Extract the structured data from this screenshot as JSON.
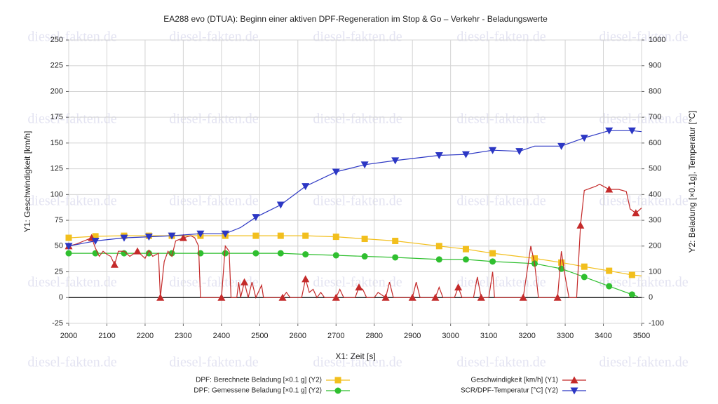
{
  "chart_data": {
    "type": "line",
    "title": "EA288 evo (DTUA): Beginn einer aktiven DPF-Regeneration im Stop & Go – Verkehr - Beladungswerte",
    "xlabel": "X1: Zeit [s]",
    "ylabel": "Y1: Geschwindigkeit [km/h]",
    "y2label": "Y2: Beladung [×0.1g], Temperatur [°C]",
    "watermark": "diesel-fakten.de",
    "xlim": [
      2000,
      3500
    ],
    "xticks": [
      2000,
      2100,
      2200,
      2300,
      2400,
      2500,
      2600,
      2700,
      2800,
      2900,
      3000,
      3100,
      3200,
      3300,
      3400,
      3500
    ],
    "ylim": [
      -25,
      250
    ],
    "yticks": [
      -25,
      0,
      25,
      50,
      75,
      100,
      125,
      150,
      175,
      200,
      225,
      250
    ],
    "y2lim": [
      -100,
      1000
    ],
    "y2ticks": [
      -100,
      0,
      100,
      200,
      300,
      400,
      500,
      600,
      700,
      800,
      900,
      1000
    ],
    "grid": true,
    "series": [
      {
        "name": "DPF: Berechnete Beladung [×0.1 g] (Y2)",
        "color": "#f2bf1d",
        "marker": "square",
        "axis": "y2",
        "x": [
          2000,
          2070,
          2145,
          2210,
          2270,
          2345,
          2410,
          2490,
          2555,
          2620,
          2700,
          2775,
          2855,
          2970,
          3040,
          3110,
          3220,
          3290,
          3350,
          3415,
          3475,
          3500
        ],
        "values": [
          232,
          238,
          240,
          240,
          240,
          240,
          240,
          240,
          240,
          240,
          236,
          228,
          220,
          200,
          188,
          172,
          152,
          136,
          120,
          104,
          88,
          84
        ]
      },
      {
        "name": "DPF: Gemessene Beladung [×0.1 g] (Y2)",
        "color": "#2fbf2f",
        "marker": "circle",
        "axis": "y2",
        "x": [
          2000,
          2070,
          2145,
          2210,
          2270,
          2345,
          2410,
          2490,
          2555,
          2620,
          2700,
          2775,
          2855,
          2970,
          3040,
          3110,
          3220,
          3290,
          3350,
          3415,
          3475,
          3490
        ],
        "values": [
          172,
          172,
          172,
          172,
          172,
          172,
          172,
          172,
          172,
          168,
          164,
          160,
          156,
          148,
          148,
          140,
          132,
          112,
          80,
          44,
          12,
          4
        ]
      },
      {
        "name": "Geschwindigkeit [km/h] (Y1)",
        "color": "#c42a2a",
        "marker": "triangle-up",
        "axis": "y",
        "x": [
          2000,
          2020,
          2040,
          2060,
          2070,
          2080,
          2090,
          2100,
          2110,
          2120,
          2130,
          2145,
          2160,
          2180,
          2200,
          2210,
          2220,
          2235,
          2240,
          2250,
          2260,
          2270,
          2280,
          2300,
          2320,
          2330,
          2340,
          2345,
          2400,
          2410,
          2420,
          2425,
          2440,
          2445,
          2450,
          2460,
          2470,
          2480,
          2490,
          2505,
          2510,
          2560,
          2570,
          2580,
          2610,
          2620,
          2630,
          2640,
          2650,
          2660,
          2670,
          2700,
          2710,
          2720,
          2750,
          2760,
          2770,
          2780,
          2800,
          2810,
          2830,
          2840,
          2850,
          2900,
          2910,
          2920,
          2960,
          2970,
          2980,
          3010,
          3020,
          3030,
          3060,
          3070,
          3080,
          3100,
          3110,
          3115,
          3190,
          3210,
          3220,
          3230,
          3280,
          3290,
          3300,
          3310,
          3330,
          3340,
          3350,
          3380,
          3390,
          3415,
          3440,
          3460,
          3470,
          3485,
          3500
        ],
        "values": [
          50,
          52,
          55,
          58,
          48,
          40,
          45,
          42,
          40,
          32,
          45,
          45,
          40,
          45,
          38,
          46,
          40,
          43,
          0,
          35,
          45,
          40,
          55,
          58,
          60,
          58,
          50,
          0,
          0,
          50,
          45,
          0,
          0,
          15,
          0,
          15,
          0,
          15,
          0,
          12,
          0,
          0,
          5,
          0,
          0,
          18,
          5,
          8,
          0,
          5,
          0,
          0,
          8,
          0,
          0,
          10,
          8,
          0,
          0,
          5,
          0,
          15,
          0,
          0,
          15,
          0,
          0,
          10,
          0,
          0,
          10,
          0,
          0,
          20,
          0,
          0,
          25,
          0,
          0,
          50,
          33,
          0,
          0,
          45,
          20,
          0,
          0,
          70,
          104,
          108,
          110,
          105,
          105,
          103,
          86,
          82,
          87
        ]
      },
      {
        "name": "SCR/DPF-Temperatur [°C] (Y2)",
        "color": "#2c37c4",
        "marker": "triangle-down",
        "axis": "y2",
        "x": [
          2000,
          2070,
          2145,
          2210,
          2270,
          2345,
          2410,
          2450,
          2490,
          2555,
          2620,
          2700,
          2775,
          2855,
          2970,
          3040,
          3110,
          3180,
          3220,
          3290,
          3350,
          3415,
          3475,
          3500
        ],
        "values": [
          200,
          220,
          232,
          236,
          240,
          248,
          248,
          272,
          312,
          360,
          432,
          488,
          516,
          532,
          552,
          556,
          572,
          568,
          588,
          588,
          620,
          648,
          648,
          644
        ]
      }
    ]
  }
}
